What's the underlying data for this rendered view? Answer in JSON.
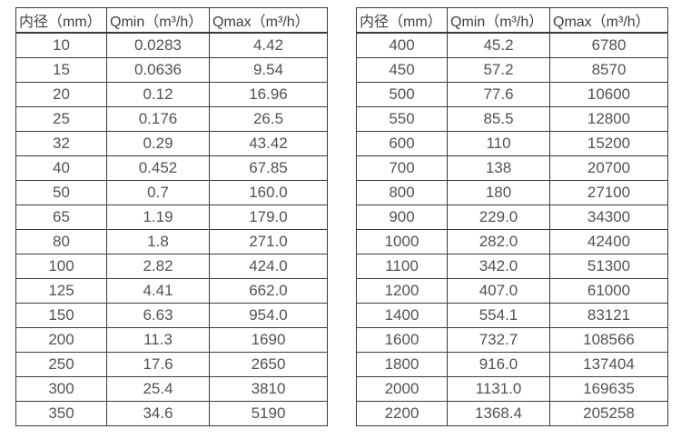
{
  "colors": {
    "background": "#ffffff",
    "border": "#3b3b3b",
    "header_text": "#3f3f3f",
    "cell_text": "#525252"
  },
  "chart_data": [
    {
      "type": "table",
      "name": "flow-rate-table-small-diameters",
      "columns": [
        "内径（mm）",
        "Qmin（m³/h）",
        "Qmax（m³/h）"
      ],
      "rows": [
        [
          "10",
          "0.0283",
          "4.42"
        ],
        [
          "15",
          "0.0636",
          "9.54"
        ],
        [
          "20",
          "0.12",
          "16.96"
        ],
        [
          "25",
          "0.176",
          "26.5"
        ],
        [
          "32",
          "0.29",
          "43.42"
        ],
        [
          "40",
          "0.452",
          "67.85"
        ],
        [
          "50",
          "0.7",
          "160.0"
        ],
        [
          "65",
          "1.19",
          "179.0"
        ],
        [
          "80",
          "1.8",
          "271.0"
        ],
        [
          "100",
          "2.82",
          "424.0"
        ],
        [
          "125",
          "4.41",
          "662.0"
        ],
        [
          "150",
          "6.63",
          "954.0"
        ],
        [
          "200",
          "11.3",
          "1690"
        ],
        [
          "250",
          "17.6",
          "2650"
        ],
        [
          "300",
          "25.4",
          "3810"
        ],
        [
          "350",
          "34.6",
          "5190"
        ]
      ]
    },
    {
      "type": "table",
      "name": "flow-rate-table-large-diameters",
      "columns": [
        "内径（mm）",
        "Qmin（m³/h）",
        "Qmax（m³/h）"
      ],
      "rows": [
        [
          "400",
          "45.2",
          "6780"
        ],
        [
          "450",
          "57.2",
          "8570"
        ],
        [
          "500",
          "77.6",
          "10600"
        ],
        [
          "550",
          "85.5",
          "12800"
        ],
        [
          "600",
          "110",
          "15200"
        ],
        [
          "700",
          "138",
          "20700"
        ],
        [
          "800",
          "180",
          "27100"
        ],
        [
          "900",
          "229.0",
          "34300"
        ],
        [
          "1000",
          "282.0",
          "42400"
        ],
        [
          "1100",
          "342.0",
          "51300"
        ],
        [
          "1200",
          "407.0",
          "61000"
        ],
        [
          "1400",
          "554.1",
          "83121"
        ],
        [
          "1600",
          "732.7",
          "108566"
        ],
        [
          "1800",
          "916.0",
          "137404"
        ],
        [
          "2000",
          "1131.0",
          "169635"
        ],
        [
          "2200",
          "1368.4",
          "205258"
        ]
      ]
    }
  ]
}
